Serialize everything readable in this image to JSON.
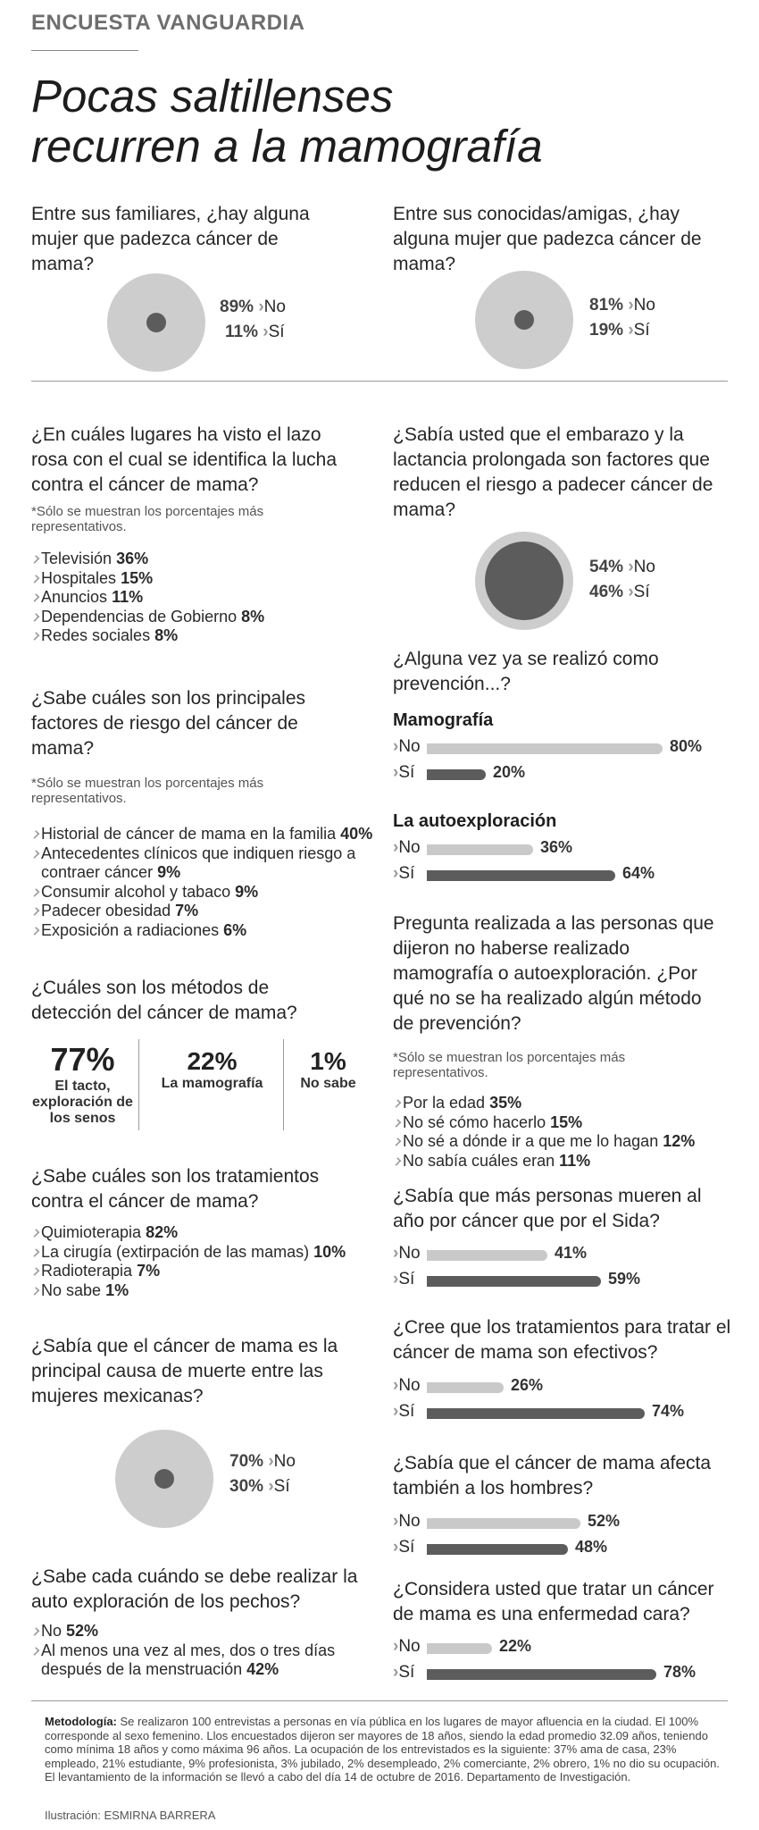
{
  "header": {
    "kicker": "ENCUESTA VANGUARDIA",
    "title_line1": "Pocas saltillenses",
    "title_line2": "recurren a la mamografía"
  },
  "colors": {
    "light": "#c9c9c9",
    "dark": "#5c5c5c",
    "accent_gray": "#999999"
  },
  "note_text": "*Sólo se muestran los porcentajes más representativos.",
  "chart_data": [
    {
      "id": "familiares",
      "type": "pie",
      "question": "Entre sus familiares, ¿hay alguna mujer que padezca cáncer de mama?",
      "slices": [
        {
          "label": "No",
          "value": 89,
          "display": "89%"
        },
        {
          "label": "Sí",
          "value": 11,
          "display": "11%"
        }
      ]
    },
    {
      "id": "amigas",
      "type": "pie",
      "question": "Entre sus conocidas/amigas,  ¿hay alguna mujer que padezca cáncer de mama?",
      "slices": [
        {
          "label": "No",
          "value": 81,
          "display": "81%"
        },
        {
          "label": "Sí",
          "value": 19,
          "display": "19%"
        }
      ]
    },
    {
      "id": "lazo",
      "type": "table",
      "question": "¿En cuáles lugares ha visto el lazo rosa con el cual se identifica la lucha contra el cáncer de mama?",
      "items": [
        {
          "label": "Televisión",
          "value": 36,
          "display": "36%"
        },
        {
          "label": "Hospitales",
          "value": 15,
          "display": "15%"
        },
        {
          "label": "Anuncios",
          "value": 11,
          "display": "11%"
        },
        {
          "label": "Dependencias de Gobierno",
          "value": 8,
          "display": "8%"
        },
        {
          "label": "Redes sociales",
          "value": 8,
          "display": "8%"
        }
      ]
    },
    {
      "id": "embarazo",
      "type": "pie",
      "question": "¿Sabía usted que el embarazo y la lactancia prolongada son factores que reducen el riesgo a padecer cáncer de mama?",
      "slices": [
        {
          "label": "No",
          "value": 54,
          "display": "54%"
        },
        {
          "label": "Sí",
          "value": 46,
          "display": "46%"
        }
      ]
    },
    {
      "id": "factores",
      "type": "table",
      "question": "¿Sabe cuáles son los principales factores de riesgo del cáncer de mama?",
      "items": [
        {
          "label": "Historial de cáncer de mama en la familia",
          "value": 40,
          "display": "40%"
        },
        {
          "label": "Antecedentes clínicos que indiquen riesgo a contraer cáncer",
          "value": 9,
          "display": "9%"
        },
        {
          "label": "Consumir alcohol y tabaco",
          "value": 9,
          "display": "9%"
        },
        {
          "label": "Padecer obesidad",
          "value": 7,
          "display": "7%"
        },
        {
          "label": "Exposición a radiaciones",
          "value": 6,
          "display": "6%"
        }
      ]
    },
    {
      "id": "prevencion",
      "type": "bar",
      "question": "¿Alguna vez ya se realizó como prevención...?",
      "groups": [
        {
          "subtitle": "Mamografía",
          "bars": [
            {
              "label": "No",
              "value": 80,
              "display": "80%"
            },
            {
              "label": "Sí",
              "value": 20,
              "display": "20%"
            }
          ]
        },
        {
          "subtitle": "La autoexploración",
          "bars": [
            {
              "label": "No",
              "value": 36,
              "display": "36%"
            },
            {
              "label": "Sí",
              "value": 64,
              "display": "64%"
            }
          ]
        }
      ]
    },
    {
      "id": "metodos",
      "type": "table",
      "question": "¿Cuáles son los métodos de detección del cáncer de mama?",
      "items": [
        {
          "label": "El tacto, exploración de los senos",
          "value": 77,
          "display": "77%"
        },
        {
          "label": "La mamografía",
          "value": 22,
          "display": "22%"
        },
        {
          "label": "No sabe",
          "value": 1,
          "display": "1%"
        }
      ]
    },
    {
      "id": "porque",
      "type": "table",
      "question": "Pregunta realizada a las personas que dijeron no haberse realizado mamografía o autoexploración. ¿Por qué no se ha realizado algún método de prevención?",
      "items": [
        {
          "label": "Por la edad",
          "value": 35,
          "display": "35%"
        },
        {
          "label": "No sé cómo hacerlo",
          "value": 15,
          "display": "15%"
        },
        {
          "label": "No sé a dónde ir a que me lo hagan",
          "value": 12,
          "display": "12%"
        },
        {
          "label": "No sabía cuáles eran",
          "value": 11,
          "display": "11%"
        }
      ]
    },
    {
      "id": "tratamientos",
      "type": "table",
      "question": "¿Sabe cuáles son los tratamientos contra el cáncer de mama?",
      "items": [
        {
          "label": "Quimioterapia",
          "value": 82,
          "display": "82%"
        },
        {
          "label": "La cirugía (extirpación de las mamas)",
          "value": 10,
          "display": "10%"
        },
        {
          "label": "Radioterapia",
          "value": 7,
          "display": "7%"
        },
        {
          "label": "No sabe",
          "value": 1,
          "display": "1%"
        }
      ]
    },
    {
      "id": "sida",
      "type": "bar",
      "question": "¿Sabía que más personas mueren al año por cáncer que por el Sida?",
      "bars": [
        {
          "label": "No",
          "value": 41,
          "display": "41%"
        },
        {
          "label": "Sí",
          "value": 59,
          "display": "59%"
        }
      ]
    },
    {
      "id": "efectivos",
      "type": "bar",
      "question": "¿Cree que los tratamientos para tratar el cáncer de mama son efectivos?",
      "bars": [
        {
          "label": "No",
          "value": 26,
          "display": "26%"
        },
        {
          "label": "Sí",
          "value": 74,
          "display": "74%"
        }
      ]
    },
    {
      "id": "muerte",
      "type": "pie",
      "question": "¿Sabía que el cáncer de mama es la principal causa de muerte entre las mujeres mexicanas?",
      "slices": [
        {
          "label": "No",
          "value": 70,
          "display": "70%"
        },
        {
          "label": "Sí",
          "value": 30,
          "display": "30%"
        }
      ]
    },
    {
      "id": "hombres",
      "type": "bar",
      "question": "¿Sabía que el cáncer de mama afecta también a los hombres?",
      "bars": [
        {
          "label": "No",
          "value": 52,
          "display": "52%"
        },
        {
          "label": "Sí",
          "value": 48,
          "display": "48%"
        }
      ]
    },
    {
      "id": "autoexploracion",
      "type": "table",
      "question": "¿Sabe cada cuándo se debe realizar la auto exploración de los pechos?",
      "items": [
        {
          "label": "No",
          "value": 52,
          "display": "52%"
        },
        {
          "label": "Al menos una vez al mes, dos o tres días después de la menstruación",
          "value": 42,
          "display": "42%"
        }
      ]
    },
    {
      "id": "cara",
      "type": "bar",
      "question": "¿Considera usted que tratar un cáncer de mama es una enfermedad cara?",
      "bars": [
        {
          "label": "No",
          "value": 22,
          "display": "22%"
        },
        {
          "label": "Sí",
          "value": 78,
          "display": "78%"
        }
      ]
    }
  ],
  "footer": {
    "method_label": "Metodología:",
    "method_text": "Se realizaron 100 entrevistas a personas en vía pública en los lugares de mayor afluencia en la ciudad. El 100% corresponde al sexo femenino. Llos encuestados dijeron  ser mayores de 18 años, siendo la edad promedio 32.09 años, teniendo como mínima 18 años y como máxima 96 años. La ocupación de los entrevistados es la siguiente: 37% ama de casa, 23% empleado, 21% estudiante, 9% profesionista, 3% jubilado, 2% desempleado, 2% comerciante, 2% obrero, 1% no dio su ocupación. El levantamiento de la información se llevó a cabo del día 14 de octubre de 2016. Departamento de Investigación.",
    "credit_label": "Ilustración:",
    "credit_name": "ESMIRNA BARRERA"
  }
}
